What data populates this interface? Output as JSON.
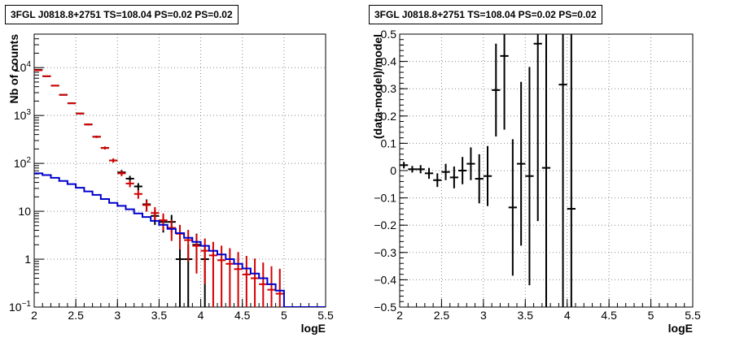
{
  "colors": {
    "data": "#000000",
    "model": "#d40000",
    "background_model": "#0000cc",
    "grid": "#888888"
  },
  "chart_data": [
    {
      "type": "line",
      "title": "3FGL J0818.8+2751 TS=108.04 PS=0.02 PS=0.02",
      "xlabel": "logE",
      "ylabel": "Nb of counts",
      "xlim": [
        2,
        5.5
      ],
      "ylim": [
        0.1,
        50000
      ],
      "yscale": "log",
      "grid": true,
      "x_ticks": [
        "2",
        "2.5",
        "3",
        "3.5",
        "4",
        "4.5",
        "5",
        "5.5"
      ],
      "y_ticks": [
        "10^{-1}",
        "1",
        "10",
        "10^{2}",
        "10^{3}",
        "10^{4}"
      ],
      "series": [
        {
          "kind": "data-points",
          "x": [
            2.05,
            2.15,
            2.25,
            2.35,
            2.45,
            2.55,
            2.65,
            2.75,
            2.85,
            2.95,
            3.05,
            3.15,
            3.25,
            3.35,
            3.45,
            3.55,
            3.65,
            3.75,
            3.85,
            3.95,
            4.05
          ],
          "y": [
            9000,
            6600,
            4200,
            2700,
            1800,
            1100,
            650,
            360,
            210,
            115,
            65,
            48,
            33,
            14,
            8,
            6,
            6,
            1,
            1,
            2,
            1
          ],
          "yerr": [
            95,
            81,
            65,
            52,
            42,
            33,
            25,
            19,
            14.5,
            10.7,
            8,
            7,
            5.7,
            3.7,
            2.8,
            2.4,
            2.4,
            1,
            1,
            1.4,
            1
          ]
        },
        {
          "kind": "model-points",
          "x": [
            2.05,
            2.15,
            2.25,
            2.35,
            2.45,
            2.55,
            2.65,
            2.75,
            2.85,
            2.95,
            3.05,
            3.15,
            3.25,
            3.35,
            3.45,
            3.55,
            3.65,
            3.75,
            3.85,
            3.95,
            4.05,
            4.15,
            4.25,
            4.35,
            4.45,
            4.55,
            4.65,
            4.75,
            4.85,
            4.95
          ],
          "y": [
            8800,
            6600,
            4200,
            2700,
            1800,
            1100,
            650,
            360,
            210,
            115,
            62,
            38,
            23,
            13.5,
            9.2,
            6.5,
            4.5,
            3.4,
            2.5,
            1.9,
            1.5,
            1.2,
            0.95,
            0.8,
            0.62,
            0.48,
            0.4,
            0.3,
            0.23,
            0.19
          ],
          "yerr": [
            94,
            81,
            65,
            52,
            42,
            33,
            25,
            19,
            14.5,
            10.7,
            7.9,
            6.2,
            4.8,
            3.7,
            3.0,
            2.5,
            2.1,
            1.8,
            1.6,
            1.4,
            1.2,
            1.1,
            0.97,
            0.9,
            0.79,
            0.69,
            0.63,
            0.55,
            0.48,
            0.44
          ]
        },
        {
          "kind": "background-step",
          "x": [
            2.05,
            2.15,
            2.25,
            2.35,
            2.45,
            2.55,
            2.65,
            2.75,
            2.85,
            2.95,
            3.05,
            3.15,
            3.25,
            3.35,
            3.45,
            3.55,
            3.65,
            3.75,
            3.85,
            3.95,
            4.05,
            4.15,
            4.25,
            4.35,
            4.45,
            4.55,
            4.65,
            4.75,
            4.85,
            4.95,
            5.05,
            5.15,
            5.25,
            5.35,
            5.45
          ],
          "y": [
            62,
            57,
            50,
            43,
            37,
            31,
            26,
            22,
            18,
            15,
            13,
            11,
            9,
            7.6,
            6.3,
            5.2,
            4.3,
            3.5,
            2.8,
            2.3,
            1.9,
            1.5,
            1.25,
            1.0,
            0.8,
            0.64,
            0.5,
            0.4,
            0.3,
            0.22,
            0.1,
            0.1,
            0.1,
            0.1,
            0.1
          ]
        }
      ]
    },
    {
      "type": "scatter",
      "title": "3FGL J0818.8+2751 TS=108.04 PS=0.02 PS=0.02",
      "xlabel": "logE",
      "ylabel": "(data-model)/model",
      "xlim": [
        2,
        5.5
      ],
      "ylim": [
        -0.5,
        0.5
      ],
      "grid": true,
      "x_ticks": [
        "2",
        "2.5",
        "3",
        "3.5",
        "4",
        "4.5",
        "5",
        "5.5"
      ],
      "y_ticks": [
        "−0.5",
        "−0.4",
        "−0.3",
        "−0.2",
        "−0.1",
        "0",
        "0.1",
        "0.2",
        "0.3",
        "0.4",
        "0.5"
      ],
      "series": [
        {
          "kind": "residuals",
          "x": [
            2.05,
            2.15,
            2.25,
            2.35,
            2.45,
            2.55,
            2.65,
            2.75,
            2.85,
            2.95,
            3.05,
            3.15,
            3.25,
            3.35,
            3.45,
            3.55,
            3.65,
            3.75,
            3.95,
            4.05
          ],
          "y": [
            0.02,
            0.005,
            0.005,
            -0.01,
            -0.035,
            -0.005,
            -0.025,
            0.0,
            0.025,
            -0.03,
            -0.02,
            0.295,
            0.42,
            -0.135,
            0.025,
            -0.02,
            0.465,
            0.01,
            0.315,
            -0.14
          ],
          "yerr": [
            0.012,
            0.012,
            0.015,
            0.02,
            0.025,
            0.03,
            0.04,
            0.05,
            0.06,
            0.09,
            0.11,
            0.17,
            0.27,
            0.25,
            0.3,
            0.4,
            0.65,
            1.0,
            1.0,
            1.0
          ]
        }
      ]
    }
  ]
}
